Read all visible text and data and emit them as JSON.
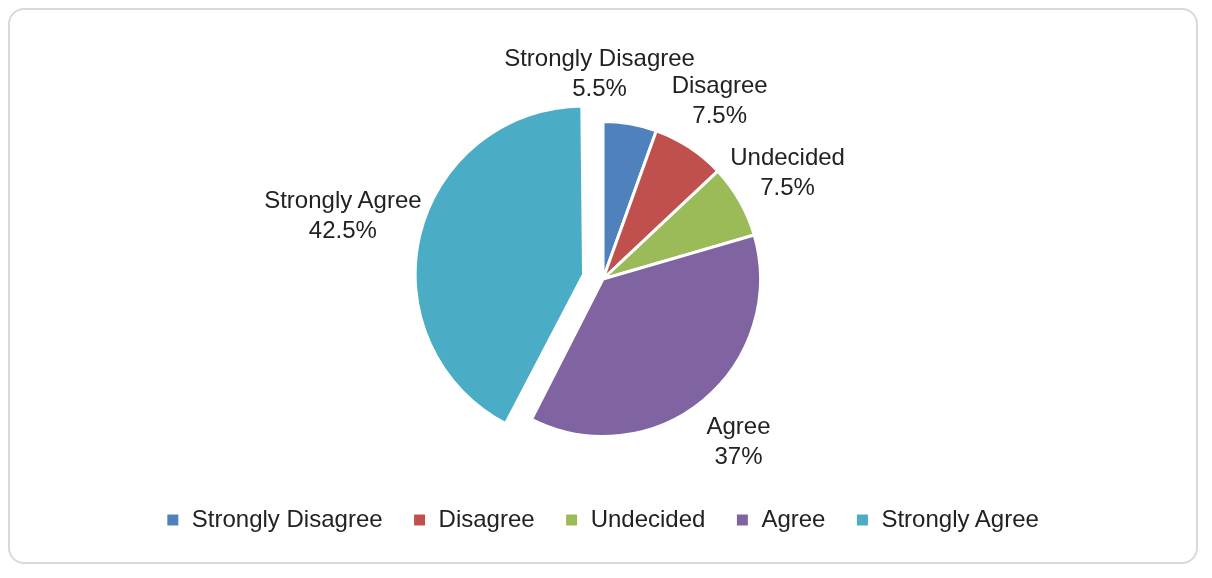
{
  "chart_data": {
    "type": "pie",
    "categories": [
      "Strongly Disagree",
      "Disagree",
      "Undecided",
      "Agree",
      "Strongly Agree"
    ],
    "values": [
      5.5,
      7.5,
      7.5,
      37,
      42.5
    ],
    "colors": [
      "#4f81bd",
      "#c0504d",
      "#9bbb59",
      "#8064a2",
      "#4bacc6"
    ],
    "value_labels": [
      "5.5%",
      "7.5%",
      "7.5%",
      "37%",
      "42.5%"
    ],
    "legend": "bottom"
  }
}
